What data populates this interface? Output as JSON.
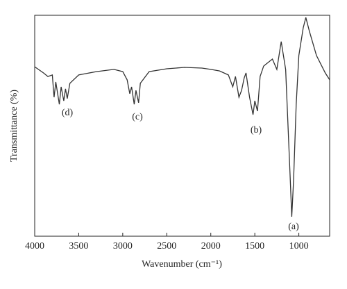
{
  "chart_data": {
    "type": "line",
    "x_label": "Wavenumber (cm⁻¹)",
    "y_label": "Transmittance (%)",
    "xlim": [
      4000,
      650
    ],
    "ylim": [
      0,
      100
    ],
    "xticks": [
      4000,
      3500,
      3000,
      2500,
      2000,
      1500,
      1000
    ],
    "annotations": [
      "(a)",
      "(b)",
      "(c)",
      "(d)"
    ],
    "series": [
      {
        "color": "#333333",
        "x": [
          4000,
          3900,
          3850,
          3800,
          3780,
          3760,
          3720,
          3700,
          3670,
          3650,
          3630,
          3600,
          3500,
          3300,
          3100,
          3000,
          2950,
          2920,
          2900,
          2870,
          2850,
          2820,
          2800,
          2700,
          2500,
          2300,
          2100,
          2000,
          1900,
          1800,
          1750,
          1720,
          1680,
          1650,
          1620,
          1600,
          1560,
          1520,
          1500,
          1470,
          1440,
          1400,
          1300,
          1250,
          1200,
          1150,
          1100,
          1080,
          1060,
          1030,
          1000,
          950,
          920,
          880,
          800,
          700,
          650
        ],
        "values": [
          76.7,
          73.9,
          72.3,
          73,
          62.9,
          69.8,
          59.7,
          67.6,
          61.3,
          66.7,
          62.3,
          69.2,
          73,
          74.5,
          75.5,
          74.5,
          70.8,
          64.5,
          67.6,
          59.7,
          66,
          60.4,
          69.2,
          74.5,
          75.8,
          76.4,
          76.1,
          75.5,
          74.8,
          73,
          67.6,
          72.3,
          62.9,
          66,
          71.7,
          73.9,
          62.9,
          55,
          61.3,
          56.6,
          72.3,
          77,
          80.2,
          75.5,
          88.1,
          75.5,
          28.3,
          8.8,
          25.2,
          59.7,
          81.8,
          94.3,
          99,
          92.8,
          81.8,
          73.9,
          70.8
        ]
      }
    ]
  }
}
